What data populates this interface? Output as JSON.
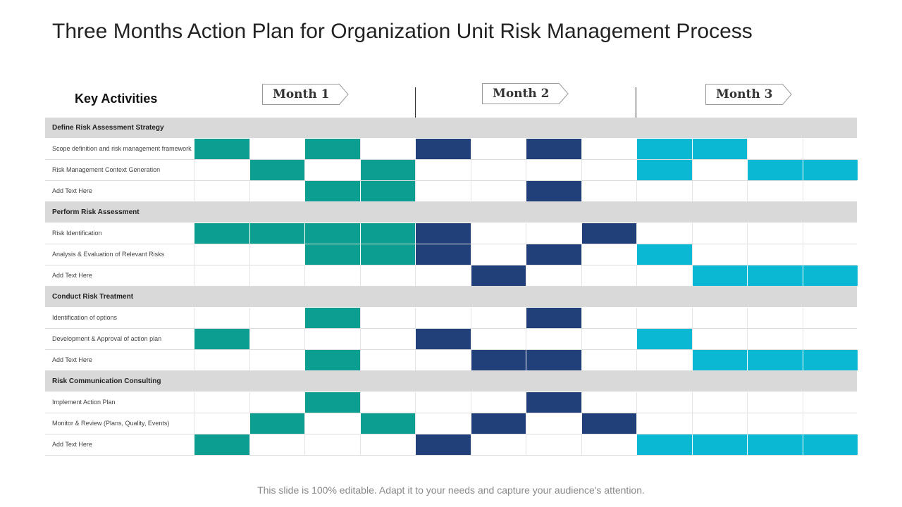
{
  "title": "Three Months Action Plan for Organization Unit Risk Management Process",
  "key_activities_label": "Key Activities",
  "months": [
    "Month 1",
    "Month 2",
    "Month 3"
  ],
  "colors": {
    "month1": "#0c9e91",
    "month2": "#21407a",
    "month3": "#0bb8d3",
    "section_bg": "#d9d9d9"
  },
  "sections": [
    {
      "title": "Define Risk Assessment Strategy",
      "rows": [
        {
          "label": "Scope definition and risk management framework",
          "cells": [
            1,
            0,
            1,
            0,
            1,
            0,
            1,
            0,
            1,
            1,
            0,
            0
          ]
        },
        {
          "label": "Risk Management  Context Generation",
          "cells": [
            0,
            1,
            0,
            1,
            0,
            0,
            0,
            0,
            1,
            0,
            1,
            1
          ]
        },
        {
          "label": "Add Text Here",
          "cells": [
            0,
            0,
            1,
            1,
            0,
            0,
            1,
            0,
            0,
            0,
            0,
            0
          ]
        }
      ]
    },
    {
      "title": "Perform Risk Assessment",
      "rows": [
        {
          "label": "Risk Identification",
          "cells": [
            1,
            1,
            1,
            1,
            1,
            0,
            0,
            1,
            0,
            0,
            0,
            0
          ]
        },
        {
          "label": "Analysis & Evaluation of Relevant Risks",
          "cells": [
            0,
            0,
            1,
            1,
            1,
            0,
            1,
            0,
            1,
            0,
            0,
            0
          ]
        },
        {
          "label": "Add Text Here",
          "cells": [
            0,
            0,
            0,
            0,
            0,
            1,
            0,
            0,
            0,
            1,
            1,
            1
          ]
        }
      ]
    },
    {
      "title": "Conduct Risk Treatment",
      "rows": [
        {
          "label": "Identification of options",
          "cells": [
            0,
            0,
            1,
            0,
            0,
            0,
            1,
            0,
            0,
            0,
            0,
            0
          ]
        },
        {
          "label": "Development & Approval of action plan",
          "cells": [
            1,
            0,
            0,
            0,
            1,
            0,
            0,
            0,
            1,
            0,
            0,
            0
          ]
        },
        {
          "label": "Add Text Here",
          "cells": [
            0,
            0,
            1,
            0,
            0,
            1,
            1,
            0,
            0,
            1,
            1,
            1
          ]
        }
      ]
    },
    {
      "title": "Risk Communication Consulting",
      "rows": [
        {
          "label": "Implement Action Plan",
          "cells": [
            0,
            0,
            1,
            0,
            0,
            0,
            1,
            0,
            0,
            0,
            0,
            0
          ]
        },
        {
          "label": "Monitor & Review (Plans, Quality, Events)",
          "cells": [
            0,
            1,
            0,
            1,
            0,
            1,
            0,
            1,
            0,
            0,
            0,
            0
          ]
        },
        {
          "label": "Add Text Here",
          "cells": [
            1,
            0,
            0,
            0,
            1,
            0,
            0,
            0,
            1,
            1,
            1,
            1
          ]
        }
      ]
    }
  ],
  "footer": "This slide is 100% editable. Adapt it to your needs and capture your audience's attention."
}
